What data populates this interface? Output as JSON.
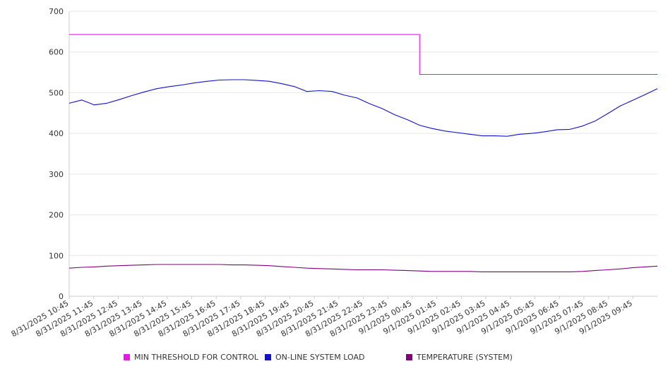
{
  "chart_data": {
    "type": "line",
    "title": "",
    "xlabel": "",
    "ylabel": "",
    "ylim": [
      0,
      700
    ],
    "yticks": [
      0,
      100,
      200,
      300,
      400,
      500,
      600,
      700
    ],
    "grid": true,
    "legend_position": "bottom",
    "x_tick_labels": [
      "8/31/2025 10:45",
      "8/31/2025 11:45",
      "8/31/2025 12:45",
      "8/31/2025 13:45",
      "8/31/2025 14:45",
      "8/31/2025 15:45",
      "8/31/2025 16:45",
      "8/31/2025 17:45",
      "8/31/2025 18:45",
      "8/31/2025 19:45",
      "8/31/2025 20:45",
      "8/31/2025 21:45",
      "8/31/2025 22:45",
      "8/31/2025 23:45",
      "9/1/2025 00:45",
      "9/1/2025 01:45",
      "9/1/2025 02:45",
      "9/1/2025 03:45",
      "9/1/2025 04:45",
      "9/1/2025 05:45",
      "9/1/2025 06:45",
      "9/1/2025 07:45",
      "9/1/2025 08:45",
      "9/1/2025 09:45"
    ],
    "x": [
      "8/31/2025 10:45",
      "8/31/2025 11:15",
      "8/31/2025 11:45",
      "8/31/2025 12:15",
      "8/31/2025 12:45",
      "8/31/2025 13:15",
      "8/31/2025 13:45",
      "8/31/2025 14:15",
      "8/31/2025 14:45",
      "8/31/2025 15:15",
      "8/31/2025 15:45",
      "8/31/2025 16:15",
      "8/31/2025 16:45",
      "8/31/2025 17:15",
      "8/31/2025 17:45",
      "8/31/2025 18:15",
      "8/31/2025 18:45",
      "8/31/2025 19:15",
      "8/31/2025 19:45",
      "8/31/2025 20:15",
      "8/31/2025 20:45",
      "8/31/2025 21:15",
      "8/31/2025 21:45",
      "8/31/2025 22:15",
      "8/31/2025 22:45",
      "8/31/2025 23:15",
      "8/31/2025 23:45",
      "9/1/2025 00:15",
      "9/1/2025 00:45",
      "9/1/2025 01:15",
      "9/1/2025 01:45",
      "9/1/2025 02:15",
      "9/1/2025 02:45",
      "9/1/2025 03:15",
      "9/1/2025 03:45",
      "9/1/2025 04:15",
      "9/1/2025 04:45",
      "9/1/2025 05:15",
      "9/1/2025 05:45",
      "9/1/2025 06:15",
      "9/1/2025 06:45",
      "9/1/2025 07:15",
      "9/1/2025 07:45",
      "9/1/2025 08:15",
      "9/1/2025 08:45",
      "9/1/2025 09:15",
      "9/1/2025 09:45",
      "9/1/2025 10:15"
    ],
    "series": [
      {
        "name": "MIN THRESHOLD FOR CONTROL",
        "color": "#e817e8",
        "step": true,
        "values": [
          643,
          643,
          643,
          643,
          643,
          643,
          643,
          643,
          643,
          643,
          643,
          643,
          643,
          643,
          643,
          643,
          643,
          643,
          643,
          643,
          643,
          643,
          643,
          643,
          643,
          643,
          643,
          643,
          545,
          545,
          545,
          545,
          545,
          545,
          545,
          545,
          545,
          545,
          545,
          545,
          545,
          545,
          545,
          545,
          545,
          545,
          545,
          545
        ]
      },
      {
        "name": "ON-LINE SYSTEM LOAD",
        "color": "#1010d0",
        "step": false,
        "values": [
          474,
          482,
          470,
          474,
          483,
          493,
          502,
          510,
          515,
          519,
          524,
          528,
          531,
          532,
          532,
          530,
          528,
          522,
          515,
          503,
          505,
          503,
          494,
          487,
          473,
          461,
          446,
          434,
          420,
          412,
          406,
          402,
          398,
          394,
          394,
          393,
          398,
          400,
          404,
          409,
          410,
          418,
          430,
          448,
          467,
          481,
          495,
          510
        ]
      },
      {
        "name": "TEMPERATURE (SYSTEM)",
        "color": "#800080",
        "step": false,
        "values": [
          69,
          71,
          72,
          74,
          75,
          76,
          77,
          78,
          78,
          78,
          78,
          78,
          78,
          77,
          77,
          76,
          75,
          73,
          71,
          69,
          68,
          67,
          66,
          65,
          65,
          65,
          64,
          63,
          62,
          61,
          61,
          61,
          61,
          60,
          60,
          60,
          60,
          60,
          60,
          60,
          60,
          61,
          63,
          65,
          67,
          70,
          72,
          74
        ]
      }
    ]
  }
}
